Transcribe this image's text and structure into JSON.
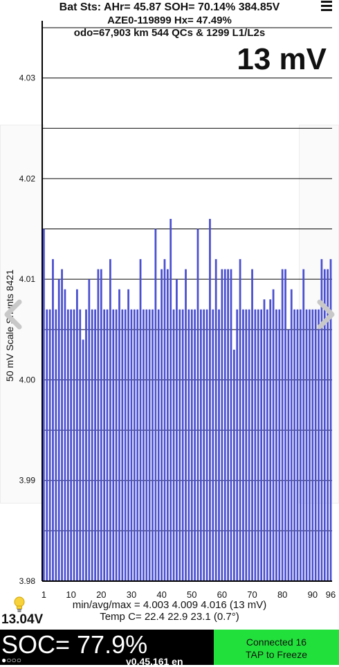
{
  "header": {
    "line1": "Bat Sts:  AHr= 45.87  SOH= 70.14%   384.85V",
    "line2": "AZE0-119899   Hx= 47.49%",
    "line3": "odo=67,903 km 544 QCs & 1299 L1/L2s"
  },
  "scale_label": "13 mV",
  "stats": {
    "line1": "min/avg/max = 4.003 4.009 4.016  (13 mV)",
    "line2": "Temp C= 22.4  22.9  23.1  (0.7°)"
  },
  "pack_voltage": "13.04V",
  "soc": "SOC= 77.9%",
  "dots": "●○○○",
  "version": "v0.45.161 en",
  "connection": {
    "line1": "Connected 16",
    "line2": "TAP to Freeze"
  },
  "icons": {
    "menu": "hamburger-menu-icon",
    "bulb": "lightbulb-icon",
    "prev": "chevron-left-icon",
    "next": "chevron-right-icon"
  },
  "colors": {
    "bar": "#4a4fd0",
    "connected": "#22e03b",
    "soc_bg": "#000000"
  },
  "chart_data": {
    "type": "bar",
    "ylabel": "50 mV Scale Shunts 8421",
    "ylim": [
      3.98,
      4.035
    ],
    "yticks": [
      "4.03",
      "4.02",
      "4.01",
      "4.00",
      "3.99",
      "3.98"
    ],
    "xticks": [
      "1",
      "10",
      "20",
      "30",
      "40",
      "50",
      "60",
      "70",
      "80",
      "90",
      "96"
    ],
    "x": [
      1,
      2,
      3,
      4,
      5,
      6,
      7,
      8,
      9,
      10,
      11,
      12,
      13,
      14,
      15,
      16,
      17,
      18,
      19,
      20,
      21,
      22,
      23,
      24,
      25,
      26,
      27,
      28,
      29,
      30,
      31,
      32,
      33,
      34,
      35,
      36,
      37,
      38,
      39,
      40,
      41,
      42,
      43,
      44,
      45,
      46,
      47,
      48,
      49,
      50,
      51,
      52,
      53,
      54,
      55,
      56,
      57,
      58,
      59,
      60,
      61,
      62,
      63,
      64,
      65,
      66,
      67,
      68,
      69,
      70,
      71,
      72,
      73,
      74,
      75,
      76,
      77,
      78,
      79,
      80,
      81,
      82,
      83,
      84,
      85,
      86,
      87,
      88,
      89,
      90,
      91,
      92,
      93,
      94,
      95,
      96
    ],
    "values": [
      4.015,
      4.007,
      4.007,
      4.012,
      4.007,
      4.01,
      4.011,
      4.009,
      4.007,
      4.007,
      4.007,
      4.009,
      4.007,
      4.004,
      4.007,
      4.01,
      4.007,
      4.007,
      4.011,
      4.011,
      4.007,
      4.007,
      4.012,
      4.007,
      4.007,
      4.009,
      4.007,
      4.007,
      4.009,
      4.007,
      4.007,
      4.007,
      4.012,
      4.007,
      4.007,
      4.007,
      4.007,
      4.015,
      4.007,
      4.011,
      4.012,
      4.011,
      4.016,
      4.007,
      4.01,
      4.007,
      4.007,
      4.011,
      4.007,
      4.007,
      4.007,
      4.015,
      4.007,
      4.007,
      4.007,
      4.016,
      4.007,
      4.012,
      4.007,
      4.011,
      4.011,
      4.011,
      4.011,
      4.003,
      4.007,
      4.012,
      4.007,
      4.007,
      4.007,
      4.011,
      4.007,
      4.007,
      4.007,
      4.008,
      4.007,
      4.008,
      4.009,
      4.007,
      4.007,
      4.011,
      4.011,
      4.005,
      4.009,
      4.007,
      4.007,
      4.007,
      4.011,
      4.007,
      4.007,
      4.007,
      4.007,
      4.007,
      4.012,
      4.011,
      4.011,
      4.012
    ]
  }
}
